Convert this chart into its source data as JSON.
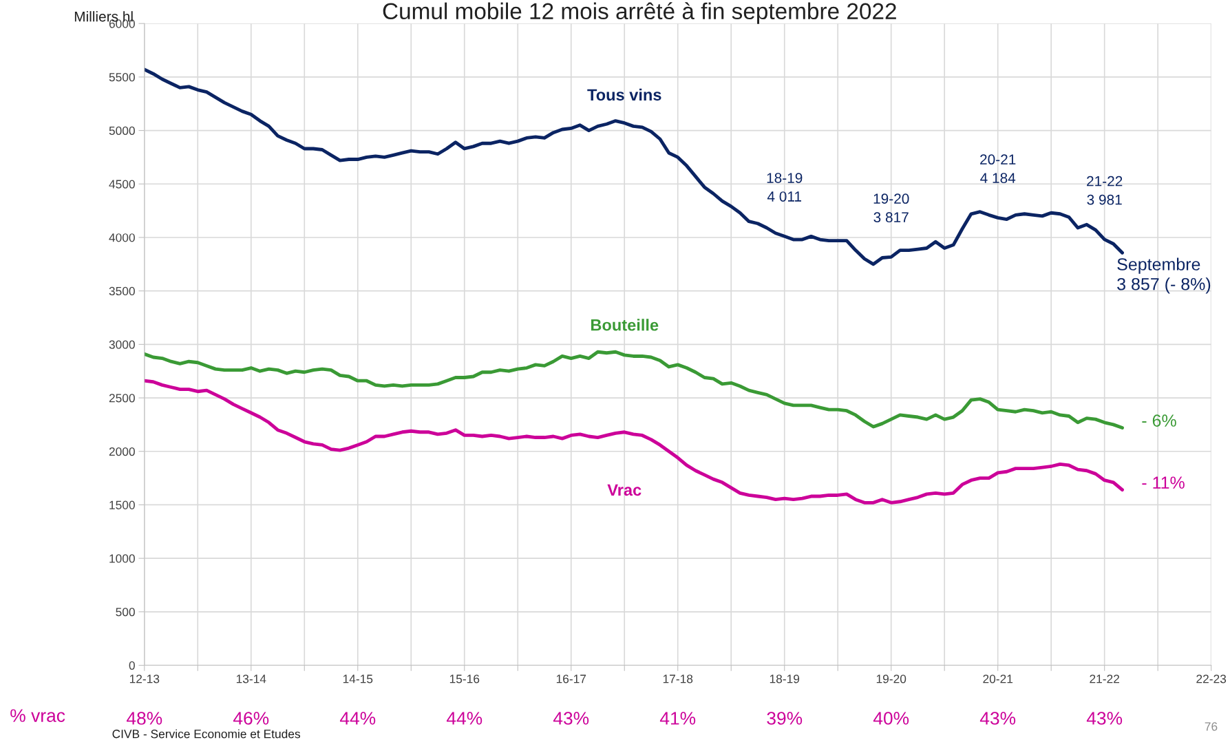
{
  "chart_data": {
    "type": "line",
    "title": "Cumul mobile 12 mois arrêté à fin septembre 2022",
    "ylabel": "Milliers hl",
    "categories": [
      "12-13",
      null,
      null,
      null,
      null,
      null,
      null,
      null,
      null,
      null,
      null,
      null,
      "13-14",
      null,
      null,
      null,
      null,
      null,
      null,
      null,
      null,
      null,
      null,
      null,
      "14-15",
      null,
      null,
      null,
      null,
      null,
      null,
      null,
      null,
      null,
      null,
      null,
      "15-16",
      null,
      null,
      null,
      null,
      null,
      null,
      null,
      null,
      null,
      null,
      null,
      "16-17",
      null,
      null,
      null,
      null,
      null,
      null,
      null,
      null,
      null,
      null,
      null,
      "17-18",
      null,
      null,
      null,
      null,
      null,
      null,
      null,
      null,
      null,
      null,
      null,
      "18-19",
      null,
      null,
      null,
      null,
      null,
      null,
      null,
      null,
      null,
      null,
      null,
      "19-20",
      null,
      null,
      null,
      null,
      null,
      null,
      null,
      null,
      null,
      null,
      null,
      "20-21",
      null,
      null,
      null,
      null,
      null,
      null,
      null,
      null,
      null,
      null,
      null,
      "21-22",
      null,
      null,
      null,
      null,
      null,
      null,
      null,
      null,
      null,
      null,
      null,
      "22-23"
    ],
    "series": [
      {
        "name": "Tous vins",
        "color": "#0b2463",
        "values": [
          5570,
          5530,
          5480,
          5440,
          5400,
          5410,
          5380,
          5360,
          5310,
          5260,
          5220,
          5180,
          5150,
          5090,
          5040,
          4950,
          4910,
          4880,
          4830,
          4830,
          4820,
          4770,
          4720,
          4730,
          4730,
          4750,
          4760,
          4750,
          4770,
          4790,
          4810,
          4800,
          4800,
          4780,
          4830,
          4890,
          4830,
          4850,
          4880,
          4880,
          4900,
          4880,
          4900,
          4930,
          4940,
          4930,
          4980,
          5010,
          5020,
          5050,
          5000,
          5040,
          5060,
          5090,
          5070,
          5040,
          5030,
          4990,
          4920,
          4790,
          4750,
          4670,
          4570,
          4470,
          4410,
          4340,
          4290,
          4230,
          4150,
          4130,
          4090,
          4040,
          4011,
          3980,
          3980,
          4010,
          3980,
          3970,
          3970,
          3970,
          3880,
          3800,
          3750,
          3810,
          3817,
          3880,
          3880,
          3890,
          3900,
          3960,
          3900,
          3930,
          4080,
          4220,
          4240,
          4210,
          4184,
          4170,
          4210,
          4220,
          4210,
          4200,
          4230,
          4220,
          4190,
          4090,
          4120,
          4070,
          3981,
          3940,
          3857,
          null,
          null,
          null,
          null,
          null,
          null,
          null,
          null,
          null,
          null
        ]
      },
      {
        "name": "Bouteille",
        "color": "#3a9a35",
        "values": [
          2910,
          2880,
          2870,
          2840,
          2820,
          2840,
          2830,
          2800,
          2770,
          2760,
          2760,
          2760,
          2780,
          2750,
          2770,
          2760,
          2730,
          2750,
          2740,
          2760,
          2770,
          2760,
          2710,
          2700,
          2660,
          2660,
          2620,
          2610,
          2620,
          2610,
          2620,
          2620,
          2620,
          2630,
          2660,
          2690,
          2690,
          2700,
          2740,
          2740,
          2760,
          2750,
          2770,
          2780,
          2810,
          2800,
          2840,
          2890,
          2870,
          2890,
          2870,
          2930,
          2920,
          2930,
          2900,
          2890,
          2890,
          2880,
          2850,
          2790,
          2810,
          2780,
          2740,
          2690,
          2680,
          2630,
          2640,
          2610,
          2570,
          2550,
          2530,
          2490,
          2450,
          2430,
          2430,
          2430,
          2410,
          2390,
          2390,
          2380,
          2340,
          2280,
          2230,
          2260,
          2300,
          2340,
          2330,
          2320,
          2300,
          2340,
          2300,
          2320,
          2380,
          2480,
          2490,
          2460,
          2390,
          2380,
          2370,
          2390,
          2380,
          2360,
          2370,
          2340,
          2330,
          2270,
          2310,
          2300,
          2270,
          2250,
          2220,
          null,
          null,
          null,
          null,
          null,
          null,
          null,
          null,
          null,
          null
        ]
      },
      {
        "name": "Vrac",
        "color": "#cc0099",
        "values": [
          2660,
          2650,
          2620,
          2600,
          2580,
          2580,
          2560,
          2570,
          2530,
          2490,
          2440,
          2400,
          2360,
          2320,
          2270,
          2200,
          2170,
          2130,
          2090,
          2070,
          2060,
          2020,
          2010,
          2030,
          2060,
          2090,
          2140,
          2140,
          2160,
          2180,
          2190,
          2180,
          2180,
          2160,
          2170,
          2200,
          2150,
          2150,
          2140,
          2150,
          2140,
          2120,
          2130,
          2140,
          2130,
          2130,
          2140,
          2120,
          2150,
          2160,
          2140,
          2130,
          2150,
          2170,
          2180,
          2160,
          2150,
          2110,
          2060,
          2000,
          1940,
          1870,
          1820,
          1780,
          1740,
          1710,
          1660,
          1610,
          1590,
          1580,
          1570,
          1550,
          1560,
          1550,
          1560,
          1580,
          1580,
          1590,
          1590,
          1600,
          1550,
          1520,
          1520,
          1550,
          1520,
          1530,
          1550,
          1570,
          1600,
          1610,
          1600,
          1610,
          1690,
          1730,
          1750,
          1750,
          1800,
          1810,
          1840,
          1840,
          1840,
          1850,
          1860,
          1880,
          1870,
          1830,
          1820,
          1790,
          1730,
          1710,
          1640,
          null,
          null,
          null,
          null,
          null,
          null,
          null,
          null,
          null,
          null
        ]
      }
    ],
    "ylim": [
      0,
      6000
    ],
    "yticks": [
      0,
      500,
      1000,
      1500,
      2000,
      2500,
      3000,
      3500,
      4000,
      4500,
      5000,
      5500,
      6000
    ],
    "grid": true,
    "legend": false,
    "annotations": [
      {
        "text": "18-19\n4 011",
        "x": "18-19",
        "y": 4011
      },
      {
        "text": "19-20\n3 817",
        "x": "19-20",
        "y": 3817
      },
      {
        "text": "20-21\n4 184",
        "x": "20-21",
        "y": 4184
      },
      {
        "text": "21-22\n3 981",
        "x": "21-22",
        "y": 3981
      },
      "Septembre\n3 857 (- 8%)",
      "- 6%",
      "- 11%",
      "% vrac",
      "48%",
      "46%",
      "44%",
      "44%",
      "43%",
      "41%",
      "39%",
      "40%",
      "43%",
      "43%",
      "CIVB - Service Economie et Etudes",
      "76"
    ]
  }
}
